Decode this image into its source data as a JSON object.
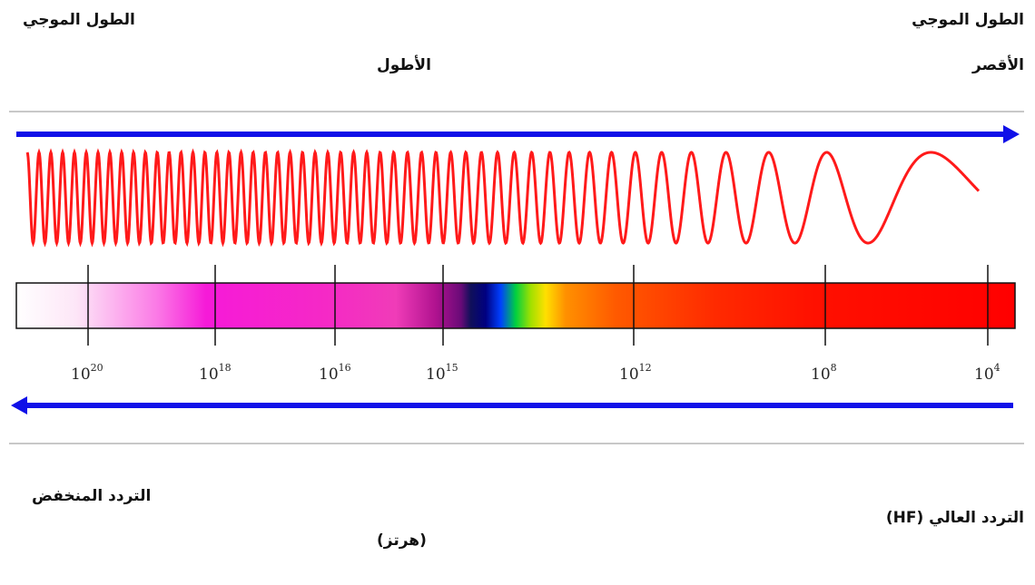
{
  "labels": {
    "wavelength_left": "الطول الموجي",
    "wavelength_right": "الطول الموجي",
    "longest": "الأطول",
    "shortest": "الأقصر",
    "low_freq": "التردد المنخفض",
    "high_freq": "التردد العالي (HF)",
    "unit_hertz": "(هرتز)"
  },
  "ticks": [
    {
      "base": "10",
      "exp": "20"
    },
    {
      "base": "10",
      "exp": "18"
    },
    {
      "base": "10",
      "exp": "16"
    },
    {
      "base": "10",
      "exp": "15"
    },
    {
      "base": "10",
      "exp": "12"
    },
    {
      "base": "10",
      "exp": "8"
    },
    {
      "base": "10",
      "exp": "4"
    }
  ],
  "colors": {
    "arrow": "#1010e8",
    "wave": "#ff1a1a",
    "divider": "#c8c8c8"
  }
}
